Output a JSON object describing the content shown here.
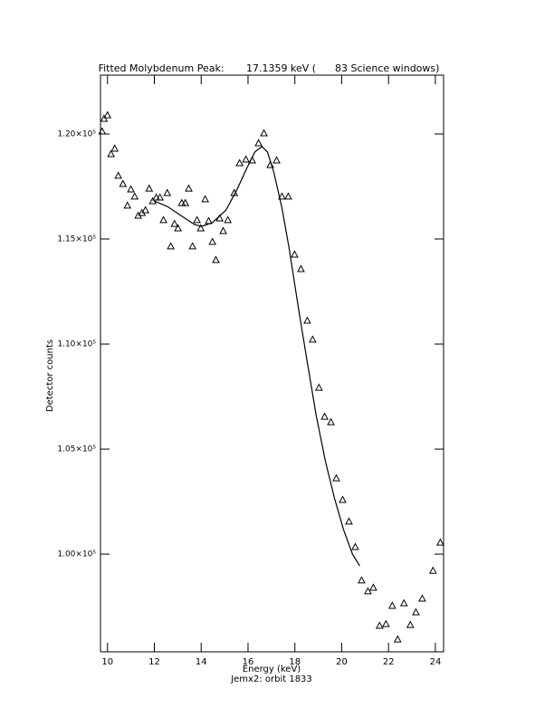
{
  "chart_data": {
    "type": "scatter",
    "title": "Fitted Molybdenum Peak:       17.1359 keV (      83 Science windows)",
    "x_label": "Energy (keV)",
    "y_label": "Detector counts",
    "annotation": "Jemx2: orbit 1833",
    "xlim": [
      9.7,
      24.35
    ],
    "ylim": [
      95350,
      122800
    ],
    "xticks": [
      10,
      12,
      14,
      16,
      18,
      20,
      22,
      24
    ],
    "yticks": [
      {
        "value": 100000,
        "label": "1.00×10⁵"
      },
      {
        "value": 105000,
        "label": "1.05×10⁵"
      },
      {
        "value": 110000,
        "label": "1.10×10⁵"
      },
      {
        "value": 115000,
        "label": "1.15×10⁵"
      },
      {
        "value": 120000,
        "label": "1.20×10⁵"
      }
    ],
    "series": [
      {
        "type": "scatter",
        "marker": "triangle",
        "color": "#000000",
        "x": [
          9.77,
          9.85,
          10.0,
          10.15,
          10.31,
          10.46,
          10.66,
          10.85,
          11.0,
          11.16,
          11.31,
          11.47,
          11.62,
          11.78,
          11.93,
          12.08,
          12.24,
          12.39,
          12.55,
          12.7,
          12.86,
          13.01,
          13.17,
          13.32,
          13.47,
          13.63,
          13.82,
          13.98,
          14.17,
          14.32,
          14.48,
          14.63,
          14.79,
          14.94,
          15.14,
          15.41,
          15.64,
          15.91,
          16.18,
          16.45,
          16.68,
          16.95,
          17.22,
          17.45,
          17.72,
          17.99,
          18.26,
          18.53,
          18.76,
          19.03,
          19.27,
          19.54,
          19.77,
          20.04,
          20.31,
          20.58,
          20.85,
          21.12,
          21.35,
          21.62,
          21.89,
          22.16,
          22.39,
          22.66,
          22.93,
          23.17,
          23.44,
          23.9,
          24.21
        ],
        "values": [
          120130,
          120730,
          120900,
          119050,
          119310,
          118020,
          117630,
          116600,
          117370,
          117030,
          116120,
          116250,
          116380,
          117410,
          116810,
          116980,
          116980,
          115910,
          117200,
          114660,
          115730,
          115520,
          116720,
          116720,
          117410,
          114660,
          115910,
          115520,
          116900,
          115860,
          114870,
          114010,
          115990,
          115390,
          115910,
          117200,
          118620,
          118790,
          118750,
          119570,
          120040,
          118530,
          118750,
          117030,
          117030,
          114270,
          113580,
          111120,
          110220,
          107930,
          106550,
          106290,
          103620,
          102590,
          101560,
          100350,
          98760,
          98240,
          98410,
          96600,
          96680,
          97550,
          95950,
          97670,
          96640,
          97240,
          97890,
          99220,
          100560
        ]
      },
      {
        "type": "line",
        "color": "#000000",
        "x": [
          12.0,
          12.55,
          13.13,
          13.71,
          14.02,
          14.48,
          15.06,
          15.52,
          15.91,
          16.29,
          16.6,
          16.83,
          17.1,
          17.45,
          17.76,
          18.15,
          18.53,
          18.92,
          19.31,
          19.69,
          20.08,
          20.46,
          20.77
        ],
        "values": [
          116810,
          116550,
          116120,
          115690,
          115600,
          115780,
          116380,
          117330,
          118280,
          119140,
          119400,
          119140,
          118190,
          116470,
          114530,
          111730,
          109140,
          106550,
          104400,
          102670,
          101160,
          100000,
          99440
        ]
      }
    ]
  }
}
